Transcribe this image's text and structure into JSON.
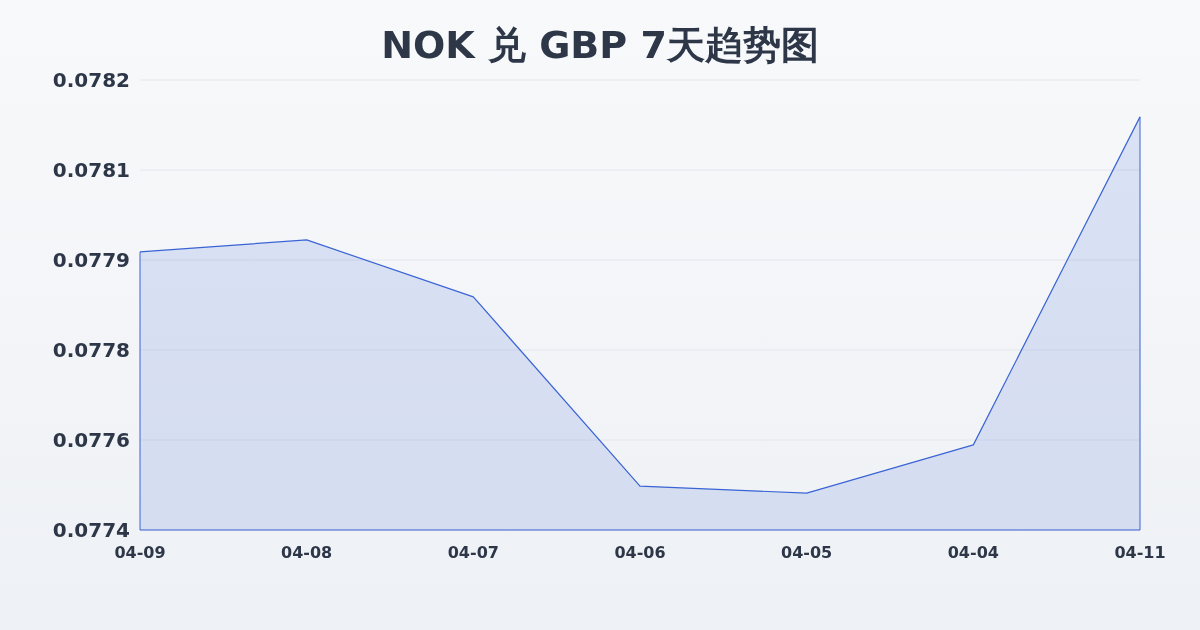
{
  "chart_data": {
    "type": "area",
    "title": "NOK 兑 GBP 7天趋势图",
    "categories": [
      "04-09",
      "04-08",
      "04-07",
      "04-06",
      "04-05",
      "04-04",
      "04-11"
    ],
    "series": [
      {
        "color": "#3a64d4",
        "values": [
          0.077933,
          0.077955,
          0.07785,
          0.077501,
          0.077488,
          0.077577,
          0.078182
        ]
      }
    ],
    "ylim": [
      0.07742,
      0.07825
    ],
    "yticks": [
      {
        "value": 0.07742,
        "label": "0.0774"
      },
      {
        "value": 0.077586,
        "label": "0.0776"
      },
      {
        "value": 0.077752,
        "label": "0.0778"
      },
      {
        "value": 0.077918,
        "label": "0.0779"
      },
      {
        "value": 0.078084,
        "label": "0.0781"
      },
      {
        "value": 0.07825,
        "label": "0.0782"
      }
    ],
    "grid": "y"
  }
}
